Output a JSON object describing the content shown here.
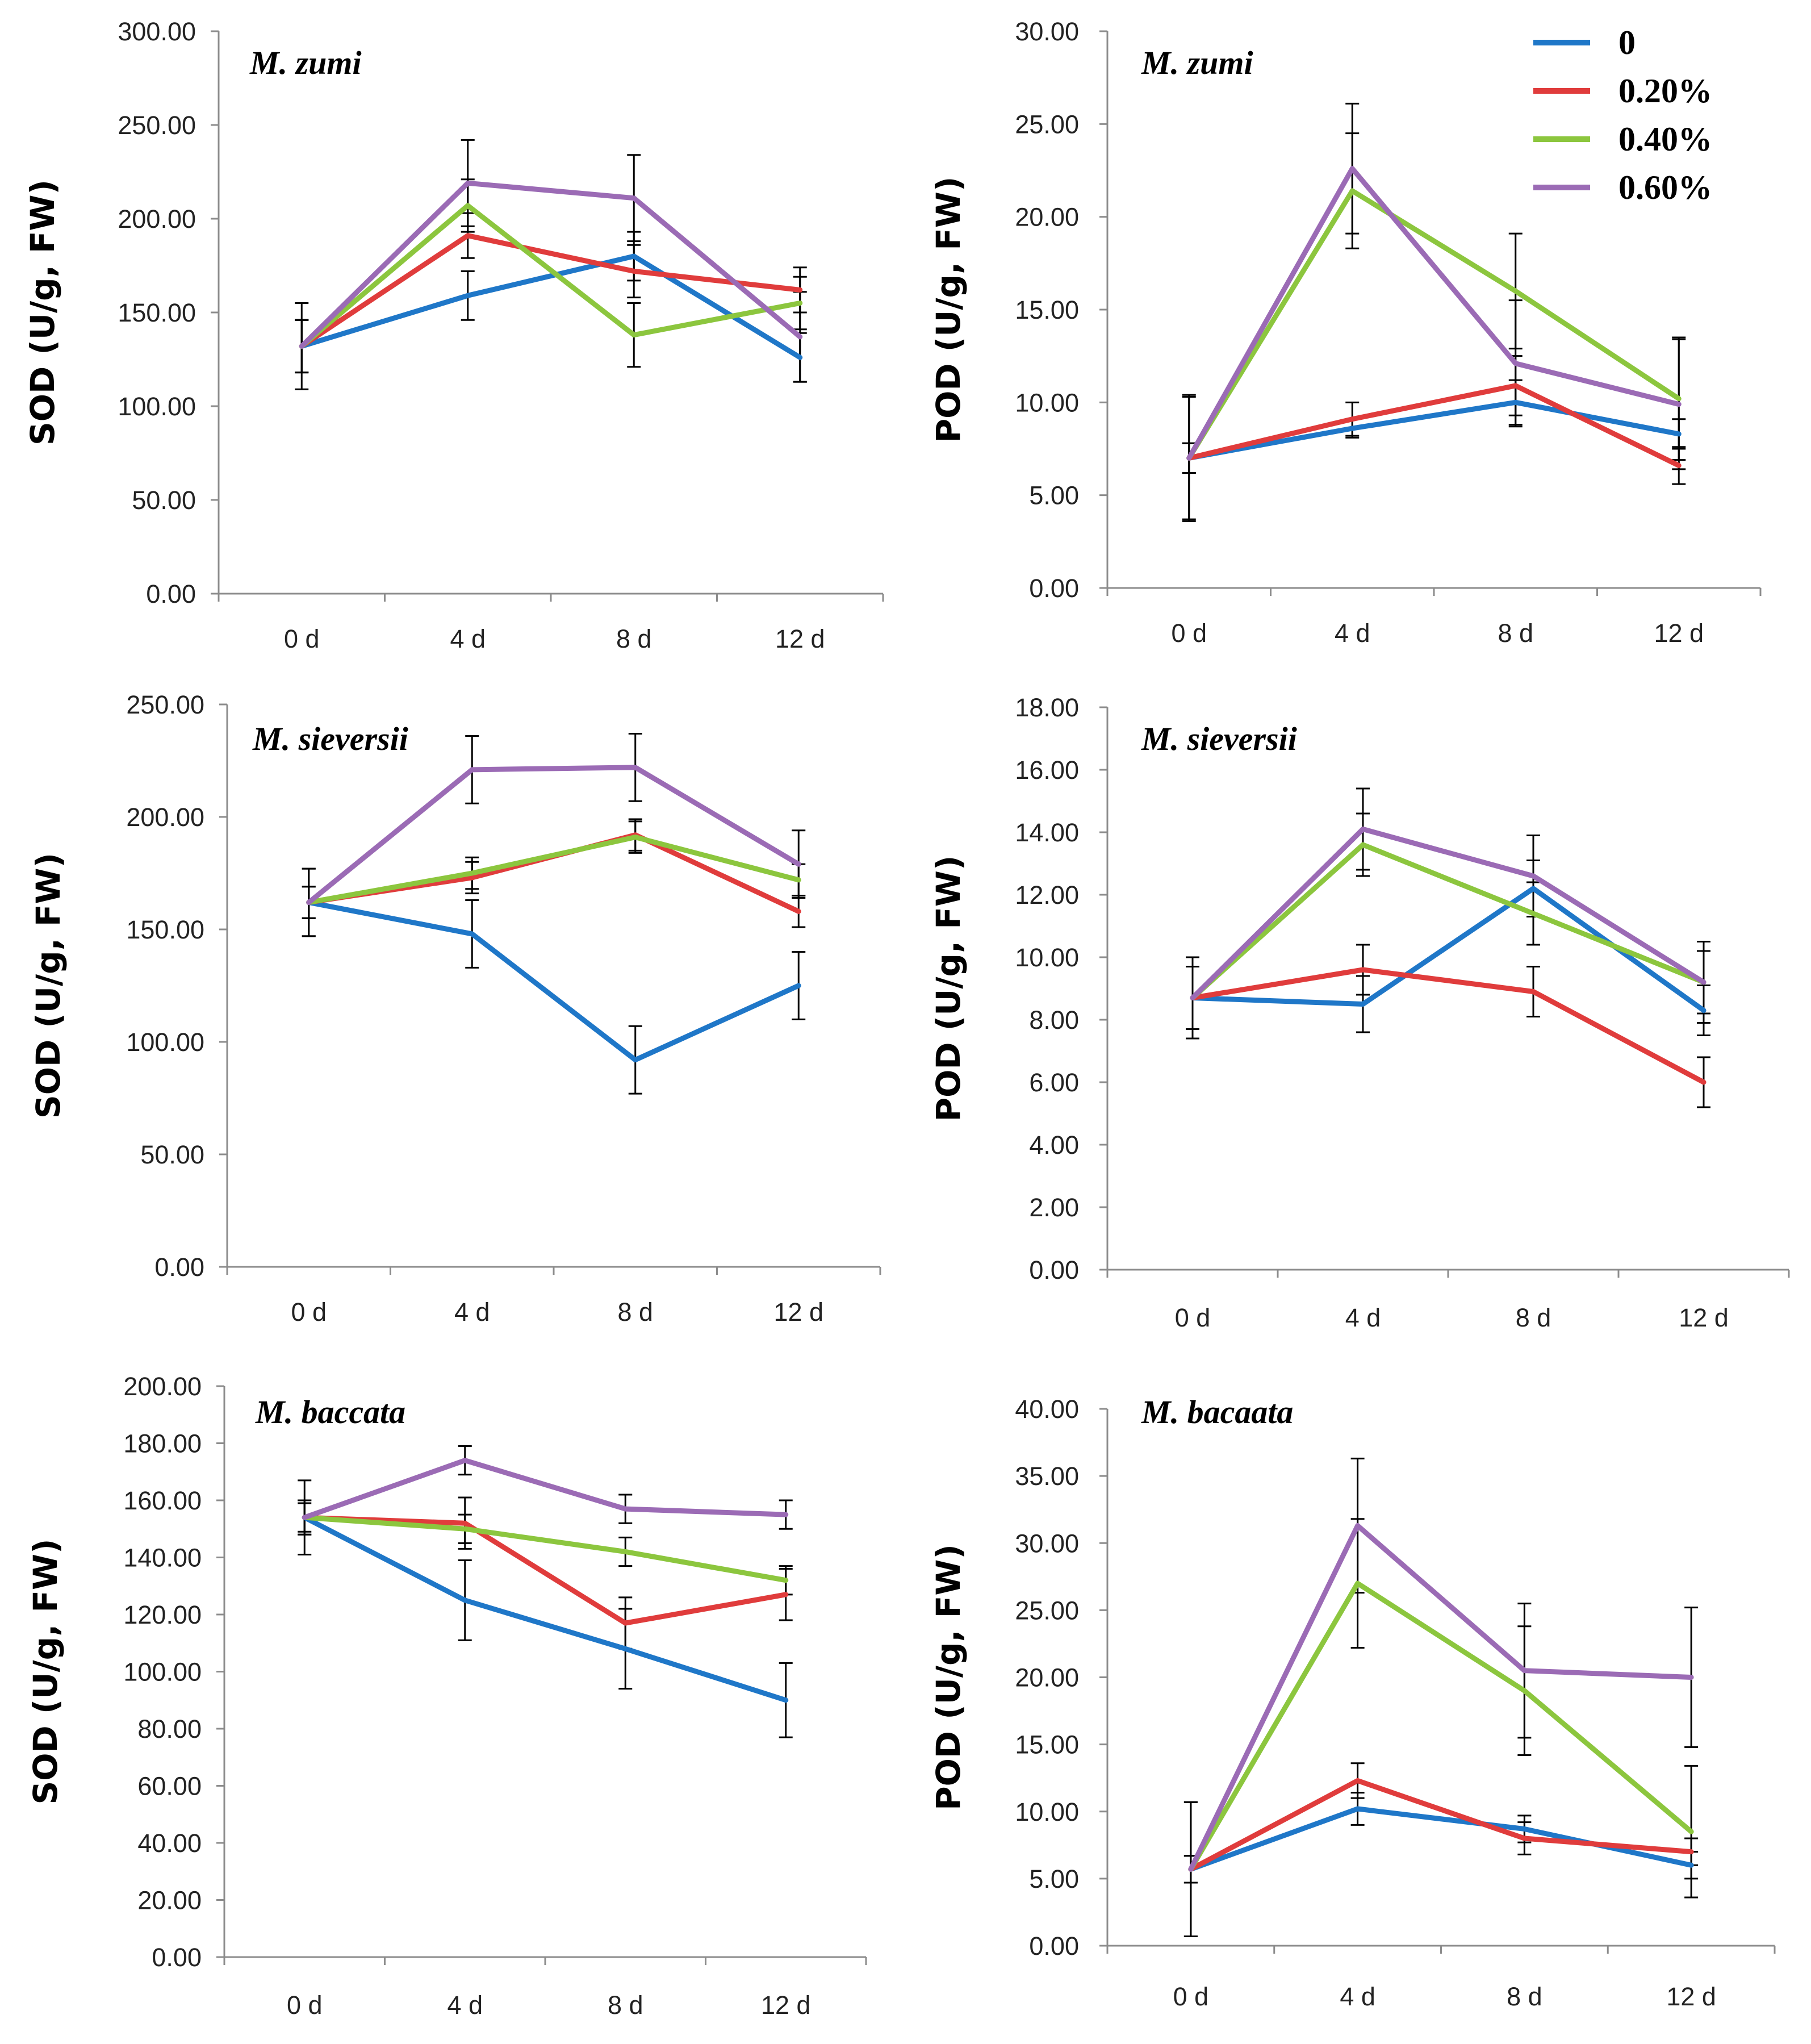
{
  "colors": {
    "0": "#1f77c8",
    "0.20%": "#e03c3c",
    "0.40%": "#8cc63e",
    "0.60%": "#9b6bb5"
  },
  "legend": {
    "entries": [
      "0",
      "0.20%",
      "0.40%",
      "0.60%"
    ]
  },
  "chart_data": [
    {
      "type": "line",
      "title": "M. zumi",
      "ylabel": "SOD (U/g, FW)",
      "categories": [
        "0 d",
        "4 d",
        "8 d",
        "12 d"
      ],
      "ylim": [
        0,
        300
      ],
      "yticks": [
        "0.00",
        "50.00",
        "100.00",
        "150.00",
        "200.00",
        "250.00",
        "300.00"
      ],
      "series": [
        {
          "name": "0",
          "values": [
            132,
            159,
            180,
            126
          ],
          "errors": [
            14,
            13,
            13,
            13
          ]
        },
        {
          "name": "0.20%",
          "values": [
            132,
            191,
            172,
            162
          ],
          "errors": [
            14,
            12,
            14,
            12
          ]
        },
        {
          "name": "0.40%",
          "values": [
            132,
            207,
            138,
            155
          ],
          "errors": [
            14,
            14,
            17,
            14
          ]
        },
        {
          "name": "0.60%",
          "values": [
            132,
            219,
            211,
            137
          ],
          "errors": [
            23,
            23,
            23,
            24
          ]
        }
      ]
    },
    {
      "type": "line",
      "title": "M. zumi",
      "ylabel": "POD (U/g, FW)",
      "categories": [
        "0 d",
        "4 d",
        "8 d",
        "12 d"
      ],
      "ylim": [
        0,
        30
      ],
      "yticks": [
        "0.00",
        "5.00",
        "10.00",
        "15.00",
        "20.00",
        "25.00",
        "30.00"
      ],
      "series": [
        {
          "name": "0",
          "values": [
            7.0,
            8.6,
            10.0,
            8.3
          ],
          "errors": [
            0.8,
            0.5,
            1.2,
            0.8
          ]
        },
        {
          "name": "0.20%",
          "values": [
            7.0,
            9.1,
            10.9,
            6.6
          ],
          "errors": [
            0.8,
            0.9,
            1.6,
            1.0
          ]
        },
        {
          "name": "0.40%",
          "values": [
            7.0,
            21.4,
            16.0,
            10.2
          ],
          "errors": [
            3.3,
            3.1,
            3.1,
            3.3
          ]
        },
        {
          "name": "0.60%",
          "values": [
            7.0,
            22.6,
            12.1,
            9.9
          ],
          "errors": [
            3.4,
            3.5,
            3.4,
            3.5
          ]
        }
      ]
    },
    {
      "type": "line",
      "title": "M. sieversii",
      "ylabel": "SOD (U/g, FW)",
      "categories": [
        "0 d",
        "4 d",
        "8 d",
        "12 d"
      ],
      "ylim": [
        0,
        250
      ],
      "yticks": [
        "0.00",
        "50.00",
        "100.00",
        "150.00",
        "200.00",
        "250.00"
      ],
      "series": [
        {
          "name": "0",
          "values": [
            162,
            148,
            92,
            125
          ],
          "errors": [
            15,
            15,
            15,
            15
          ]
        },
        {
          "name": "0.20%",
          "values": [
            162,
            173,
            192,
            158
          ],
          "errors": [
            7,
            7,
            7,
            7
          ]
        },
        {
          "name": "0.40%",
          "values": [
            162,
            175,
            191,
            172
          ],
          "errors": [
            7,
            7,
            7,
            7
          ]
        },
        {
          "name": "0.60%",
          "values": [
            162,
            221,
            222,
            179
          ],
          "errors": [
            15,
            15,
            15,
            15
          ]
        }
      ]
    },
    {
      "type": "line",
      "title": "M. sieversii",
      "ylabel": "POD (U/g, FW)",
      "categories": [
        "0 d",
        "4 d",
        "8 d",
        "12 d"
      ],
      "ylim": [
        0,
        18
      ],
      "yticks": [
        "0.00",
        "2.00",
        "4.00",
        "6.00",
        "8.00",
        "10.00",
        "12.00",
        "14.00",
        "16.00",
        "18.00"
      ],
      "series": [
        {
          "name": "0",
          "values": [
            8.7,
            8.5,
            12.2,
            8.3
          ],
          "errors": [
            1.0,
            0.9,
            0.9,
            0.8
          ]
        },
        {
          "name": "0.20%",
          "values": [
            8.7,
            9.6,
            8.9,
            6.0
          ],
          "errors": [
            1.0,
            0.8,
            0.8,
            0.8
          ]
        },
        {
          "name": "0.40%",
          "values": [
            8.7,
            13.6,
            11.4,
            9.2
          ],
          "errors": [
            1.0,
            1.0,
            1.0,
            1.0
          ]
        },
        {
          "name": "0.60%",
          "values": [
            8.7,
            14.1,
            12.6,
            9.2
          ],
          "errors": [
            1.3,
            1.3,
            1.3,
            1.3
          ]
        }
      ]
    },
    {
      "type": "line",
      "title": "M. baccata",
      "ylabel": "SOD (U/g, FW)",
      "categories": [
        "0 d",
        "4 d",
        "8 d",
        "12 d"
      ],
      "ylim": [
        0,
        200
      ],
      "yticks": [
        "0.00",
        "20.00",
        "40.00",
        "60.00",
        "80.00",
        "100.00",
        "120.00",
        "140.00",
        "160.00",
        "180.00",
        "200.00"
      ],
      "series": [
        {
          "name": "0",
          "values": [
            154,
            125,
            108,
            90
          ],
          "errors": [
            13,
            14,
            14,
            13
          ]
        },
        {
          "name": "0.20%",
          "values": [
            154,
            152,
            117,
            127
          ],
          "errors": [
            6,
            9,
            9,
            9
          ]
        },
        {
          "name": "0.40%",
          "values": [
            154,
            150,
            142,
            132
          ],
          "errors": [
            6,
            5,
            5,
            5
          ]
        },
        {
          "name": "0.60%",
          "values": [
            154,
            174,
            157,
            155
          ],
          "errors": [
            5,
            5,
            5,
            5
          ]
        }
      ]
    },
    {
      "type": "line",
      "title": "M. bacaata",
      "ylabel": "POD (U/g, FW)",
      "categories": [
        "0 d",
        "4 d",
        "8 d",
        "12 d"
      ],
      "ylim": [
        0,
        40
      ],
      "yticks": [
        "0.00",
        "5.00",
        "10.00",
        "15.00",
        "20.00",
        "25.00",
        "30.00",
        "35.00",
        "40.00"
      ],
      "series": [
        {
          "name": "0",
          "values": [
            5.7,
            10.2,
            8.7,
            6.0
          ],
          "errors": [
            1.0,
            1.2,
            1.0,
            1.0
          ]
        },
        {
          "name": "0.20%",
          "values": [
            5.7,
            12.3,
            8.0,
            7.0
          ],
          "errors": [
            1.0,
            1.3,
            1.2,
            1.0
          ]
        },
        {
          "name": "0.40%",
          "values": [
            5.7,
            27.0,
            19.0,
            8.5
          ],
          "errors": [
            5.0,
            4.8,
            4.8,
            4.9
          ]
        },
        {
          "name": "0.60%",
          "values": [
            5.7,
            31.3,
            20.5,
            20.0
          ],
          "errors": [
            5.0,
            5.0,
            5.0,
            5.2
          ]
        }
      ]
    }
  ]
}
